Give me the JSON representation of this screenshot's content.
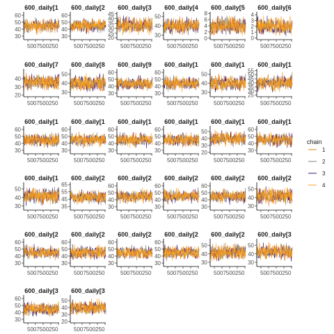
{
  "chart_data": {
    "type": "line",
    "layout": "facet-grid",
    "legend": {
      "title": "chain",
      "position": "right",
      "entries": [
        {
          "label": "1",
          "color": "#e87e1c"
        },
        {
          "label": "2",
          "color": "#7f7f7f"
        },
        {
          "label": "3",
          "color": "#3b0f70"
        },
        {
          "label": "4",
          "color": "#f6a623"
        }
      ]
    },
    "x_tick_labels": "5007500250",
    "panels": [
      {
        "label": "600_daily[1",
        "yticks": [
          "60",
          "50",
          "40",
          "30"
        ],
        "ylim": [
          25,
          65
        ],
        "center": 45,
        "spread": 10
      },
      {
        "label": "600_daily[2",
        "yticks": [
          "60",
          "50",
          "40",
          "30"
        ],
        "ylim": [
          25,
          65
        ],
        "center": 45,
        "spread": 10
      },
      {
        "label": "600_daily[3",
        "yticks": [
          "45",
          "40",
          "35",
          "30",
          "25",
          "20"
        ],
        "ylim": [
          18,
          47
        ],
        "center": 33,
        "spread": 9
      },
      {
        "label": "600_daily[4",
        "yticks": [
          "50",
          "40",
          "30"
        ],
        "ylim": [
          25,
          55
        ],
        "center": 40,
        "spread": 9
      },
      {
        "label": "600_daily[5",
        "yticks": [
          "8",
          "6",
          "4",
          "2",
          "0"
        ],
        "ylim": [
          -0.5,
          8.5
        ],
        "center": 4,
        "spread": 3
      },
      {
        "label": "600_daily[6",
        "yticks": [
          "4",
          "3",
          "2",
          "1",
          "0"
        ],
        "ylim": [
          -0.3,
          4.5
        ],
        "center": 2,
        "spread": 1.6
      },
      {
        "label": "600_daily[7",
        "yticks": [
          "40",
          "30",
          "20"
        ],
        "ylim": [
          18,
          52
        ],
        "center": 36,
        "spread": 10
      },
      {
        "label": "600_daily[8",
        "yticks": [
          "50",
          "40",
          "30"
        ],
        "ylim": [
          25,
          56
        ],
        "center": 40,
        "spread": 10
      },
      {
        "label": "600_daily[9",
        "yticks": [
          "60",
          "50",
          "40",
          "30"
        ],
        "ylim": [
          25,
          65
        ],
        "center": 44,
        "spread": 10
      },
      {
        "label": "600_daily[1",
        "yticks": [
          "60",
          "50",
          "40",
          "30"
        ],
        "ylim": [
          25,
          65
        ],
        "center": 44,
        "spread": 10
      },
      {
        "label": "600_daily[1",
        "yticks": [
          "50",
          "40",
          "30"
        ],
        "ylim": [
          25,
          56
        ],
        "center": 40,
        "spread": 9
      },
      {
        "label": "600_daily[1",
        "yticks": [
          "55",
          "50",
          "45",
          "40",
          "35",
          "30",
          "25"
        ],
        "ylim": [
          23,
          57
        ],
        "center": 40,
        "spread": 10
      },
      {
        "label": "600_daily[1",
        "yticks": [
          "60",
          "50",
          "40",
          "30"
        ],
        "ylim": [
          25,
          65
        ],
        "center": 45,
        "spread": 10
      },
      {
        "label": "600_daily[1",
        "yticks": [
          "60",
          "50",
          "40",
          "30"
        ],
        "ylim": [
          25,
          65
        ],
        "center": 45,
        "spread": 10
      },
      {
        "label": "600_daily[1",
        "yticks": [
          "60",
          "50",
          "40",
          "30"
        ],
        "ylim": [
          25,
          65
        ],
        "center": 45,
        "spread": 10
      },
      {
        "label": "600_daily[1",
        "yticks": [
          "60",
          "50",
          "40",
          "30"
        ],
        "ylim": [
          25,
          65
        ],
        "center": 45,
        "spread": 10
      },
      {
        "label": "600_daily[1",
        "yticks": [
          "50",
          "40",
          "30",
          "20"
        ],
        "ylim": [
          18,
          58
        ],
        "center": 40,
        "spread": 11
      },
      {
        "label": "600_daily[1",
        "yticks": [
          "60",
          "50",
          "40",
          "30"
        ],
        "ylim": [
          25,
          65
        ],
        "center": 45,
        "spread": 10
      },
      {
        "label": "600_daily[1",
        "yticks": [
          "50",
          "40",
          "30"
        ],
        "ylim": [
          25,
          58
        ],
        "center": 42,
        "spread": 10
      },
      {
        "label": "600_daily[2",
        "yticks": [
          "65",
          "55",
          "45",
          "35"
        ],
        "ylim": [
          30,
          68
        ],
        "center": 48,
        "spread": 10
      },
      {
        "label": "600_daily[2",
        "yticks": [
          "60",
          "50",
          "40",
          "30"
        ],
        "ylim": [
          25,
          65
        ],
        "center": 45,
        "spread": 10
      },
      {
        "label": "600_daily[2",
        "yticks": [
          "60",
          "50",
          "40",
          "30"
        ],
        "ylim": [
          25,
          65
        ],
        "center": 45,
        "spread": 10
      },
      {
        "label": "600_daily[2",
        "yticks": [
          "60",
          "50",
          "40",
          "30"
        ],
        "ylim": [
          25,
          65
        ],
        "center": 45,
        "spread": 10
      },
      {
        "label": "600_daily[2",
        "yticks": [
          "50",
          "40",
          "30"
        ],
        "ylim": [
          25,
          58
        ],
        "center": 42,
        "spread": 10
      },
      {
        "label": "600_daily[2",
        "yticks": [
          "60",
          "50",
          "40",
          "30"
        ],
        "ylim": [
          25,
          65
        ],
        "center": 45,
        "spread": 10
      },
      {
        "label": "600_daily[2",
        "yticks": [
          "60",
          "50",
          "40",
          "30"
        ],
        "ylim": [
          25,
          65
        ],
        "center": 45,
        "spread": 10
      },
      {
        "label": "600_daily[2",
        "yticks": [
          "60",
          "50",
          "40",
          "30"
        ],
        "ylim": [
          25,
          65
        ],
        "center": 45,
        "spread": 10
      },
      {
        "label": "600_daily[2",
        "yticks": [
          "60",
          "50",
          "40",
          "30"
        ],
        "ylim": [
          25,
          65
        ],
        "center": 45,
        "spread": 10
      },
      {
        "label": "600_daily[2",
        "yticks": [
          "50",
          "40",
          "30"
        ],
        "ylim": [
          25,
          58
        ],
        "center": 42,
        "spread": 10
      },
      {
        "label": "600_daily[3",
        "yticks": [
          "50",
          "40",
          "30"
        ],
        "ylim": [
          25,
          58
        ],
        "center": 42,
        "spread": 10
      },
      {
        "label": "600_daily[3",
        "yticks": [
          "60",
          "50",
          "40",
          "30"
        ],
        "ylim": [
          25,
          65
        ],
        "center": 45,
        "spread": 10
      },
      {
        "label": "600_daily[3",
        "yticks": [
          "50",
          "40",
          "30",
          "20"
        ],
        "ylim": [
          18,
          58
        ],
        "center": 40,
        "spread": 11
      }
    ]
  }
}
